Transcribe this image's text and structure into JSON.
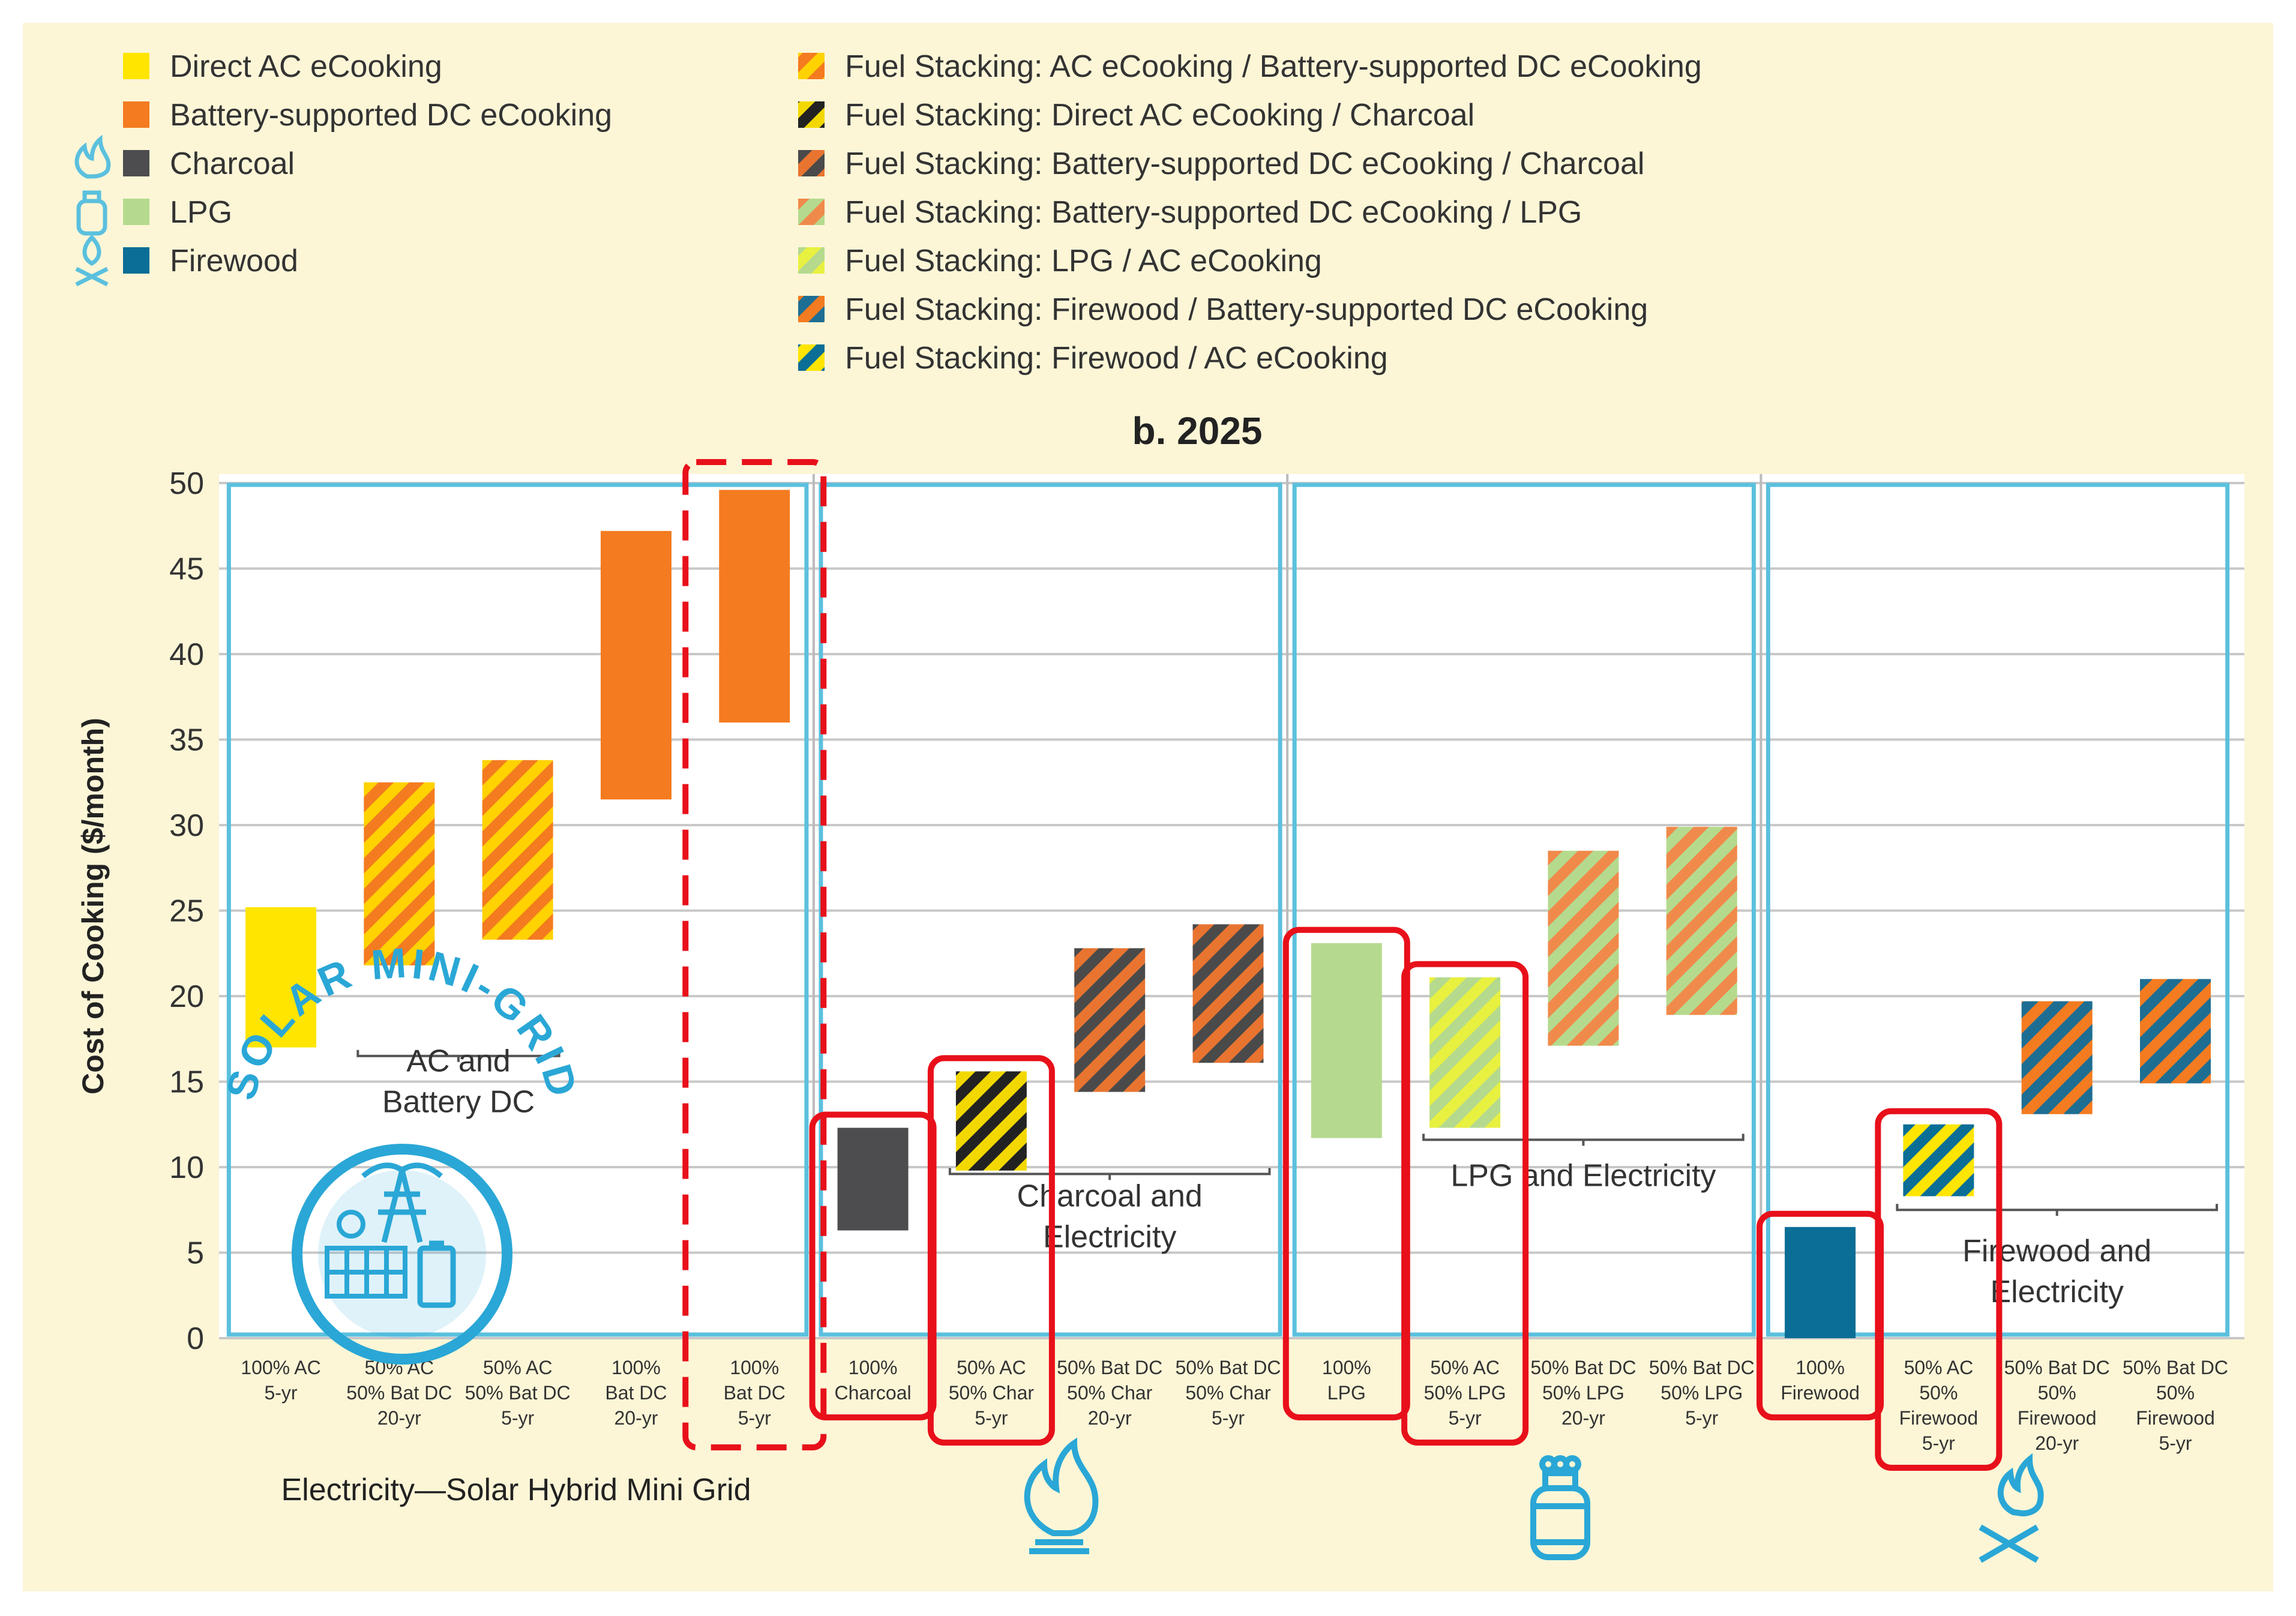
{
  "legend_left": [
    {
      "label": "Direct AC eCooking",
      "c1": "#FFE500",
      "c2": null,
      "icon": null
    },
    {
      "label": "Battery-supported DC eCooking",
      "c1": "#F47B20",
      "c2": null,
      "icon": null
    },
    {
      "label": "Charcoal",
      "c1": "#4D4D4F",
      "c2": null,
      "icon": "flame-icon"
    },
    {
      "label": "LPG",
      "c1": "#B5DA8E",
      "c2": null,
      "icon": "gas-cylinder-icon"
    },
    {
      "label": "Firewood",
      "c1": "#0A6E96",
      "c2": null,
      "icon": "campfire-icon"
    }
  ],
  "legend_right": [
    {
      "label": "Fuel Stacking: AC eCooking / Battery-supported DC eCooking",
      "c1": "#FFD200",
      "c2": "#F47B20"
    },
    {
      "label": "Fuel Stacking: Direct AC eCooking / Charcoal",
      "c1": "#F2D800",
      "c2": "#222222"
    },
    {
      "label": "Fuel Stacking: Battery-supported DC eCooking / Charcoal",
      "c1": "#E87430",
      "c2": "#4A4A4A"
    },
    {
      "label": "Fuel Stacking: Battery-supported DC eCooking / LPG",
      "c1": "#F08A4B",
      "c2": "#B5DA8E"
    },
    {
      "label": "Fuel Stacking: LPG / AC eCooking",
      "c1": "#E8F040",
      "c2": "#B5DA8E"
    },
    {
      "label": "Fuel Stacking: Firewood / Battery-supported DC eCooking",
      "c1": "#F47B20",
      "c2": "#1E6E93"
    },
    {
      "label": "Fuel Stacking: Firewood / AC eCooking",
      "c1": "#FFE500",
      "c2": "#0A6E96"
    }
  ],
  "group_labels": [
    {
      "lines": [
        "AC and",
        "Battery DC"
      ]
    },
    {
      "lines": [
        "Charcoal and",
        "Electricity"
      ]
    },
    {
      "lines": [
        "LPG and Electricity"
      ]
    },
    {
      "lines": [
        "Firewood and",
        "Electricity"
      ]
    }
  ],
  "footer_label": "Electricity—Solar Hybrid Mini Grid",
  "logo_text": "SOLAR MINI-GRID",
  "colors": {
    "background": "#FCF6D7",
    "panel_border": "#5BC0DE",
    "grid": "#C8C8C8",
    "highlight": "#E8101A"
  },
  "chart_data": {
    "type": "bar",
    "subtype": "floating-range",
    "title": "b. 2025",
    "ylabel": "Cost of Cooking ($/month)",
    "xlabel": "",
    "ylim": [
      0,
      50
    ],
    "yticks": [
      0,
      5,
      10,
      15,
      20,
      25,
      30,
      35,
      40,
      45,
      50
    ],
    "grid": true,
    "legend": "top",
    "categories": [
      {
        "lines": [
          "100% AC",
          "5-yr"
        ],
        "low": 17,
        "high": 25.2,
        "fill": "Direct AC eCooking",
        "panel": 0,
        "highlight": null
      },
      {
        "lines": [
          "50% AC",
          "50% Bat DC",
          "20-yr"
        ],
        "low": 21.8,
        "high": 32.5,
        "fill": "Fuel Stacking: AC eCooking / Battery-supported DC eCooking",
        "panel": 0,
        "highlight": null
      },
      {
        "lines": [
          "50% AC",
          "50% Bat DC",
          "5-yr"
        ],
        "low": 23.3,
        "high": 33.8,
        "fill": "Fuel Stacking: AC eCooking / Battery-supported DC eCooking",
        "panel": 0,
        "highlight": null
      },
      {
        "lines": [
          "100%",
          "Bat DC",
          "20-yr"
        ],
        "low": 31.5,
        "high": 47.2,
        "fill": "Battery-supported DC eCooking",
        "panel": 0,
        "highlight": null
      },
      {
        "lines": [
          "100%",
          "Bat DC",
          "5-yr"
        ],
        "low": 36,
        "high": 49.6,
        "fill": "Battery-supported DC eCooking",
        "panel": 0,
        "highlight": "dashed"
      },
      {
        "lines": [
          "100%",
          "Charcoal"
        ],
        "low": 6.3,
        "high": 12.3,
        "fill": "Charcoal",
        "panel": 1,
        "highlight": "solid"
      },
      {
        "lines": [
          "50% AC",
          "50% Char",
          "5-yr"
        ],
        "low": 9.8,
        "high": 15.6,
        "fill": "Fuel Stacking: Direct AC eCooking / Charcoal",
        "panel": 1,
        "highlight": "solid"
      },
      {
        "lines": [
          "50% Bat DC",
          "50% Char",
          "20-yr"
        ],
        "low": 14.4,
        "high": 22.8,
        "fill": "Fuel Stacking: Battery-supported DC eCooking / Charcoal",
        "panel": 1,
        "highlight": null
      },
      {
        "lines": [
          "50% Bat DC",
          "50% Char",
          "5-yr"
        ],
        "low": 16.1,
        "high": 24.2,
        "fill": "Fuel Stacking: Battery-supported DC eCooking / Charcoal",
        "panel": 1,
        "highlight": null
      },
      {
        "lines": [
          "100%",
          "LPG"
        ],
        "low": 11.7,
        "high": 23.1,
        "fill": "LPG",
        "panel": 2,
        "highlight": "solid"
      },
      {
        "lines": [
          "50% AC",
          "50% LPG",
          "5-yr"
        ],
        "low": 12.3,
        "high": 21.1,
        "fill": "Fuel Stacking: LPG / AC eCooking",
        "panel": 2,
        "highlight": "solid"
      },
      {
        "lines": [
          "50% Bat DC",
          "50% LPG",
          "20-yr"
        ],
        "low": 17.1,
        "high": 28.5,
        "fill": "Fuel Stacking: Battery-supported DC eCooking / LPG",
        "panel": 2,
        "highlight": null
      },
      {
        "lines": [
          "50% Bat DC",
          "50% LPG",
          "5-yr"
        ],
        "low": 18.9,
        "high": 29.9,
        "fill": "Fuel Stacking: Battery-supported DC eCooking / LPG",
        "panel": 2,
        "highlight": null
      },
      {
        "lines": [
          "100%",
          "Firewood"
        ],
        "low": 0,
        "high": 6.5,
        "fill": "Firewood",
        "panel": 3,
        "highlight": "solid"
      },
      {
        "lines": [
          "50% AC",
          "50%",
          "Firewood",
          "5-yr"
        ],
        "low": 8.3,
        "high": 12.5,
        "fill": "Fuel Stacking: Firewood / AC eCooking",
        "panel": 3,
        "highlight": "solid"
      },
      {
        "lines": [
          "50% Bat DC",
          "50%",
          "Firewood",
          "20-yr"
        ],
        "low": 13.1,
        "high": 19.7,
        "fill": "Fuel Stacking: Firewood / Battery-supported DC eCooking",
        "panel": 3,
        "highlight": null
      },
      {
        "lines": [
          "50% Bat DC",
          "50%",
          "Firewood",
          "5-yr"
        ],
        "low": 14.9,
        "high": 21,
        "fill": "Fuel Stacking: Firewood / Battery-supported DC eCooking",
        "panel": 3,
        "highlight": null
      }
    ]
  }
}
